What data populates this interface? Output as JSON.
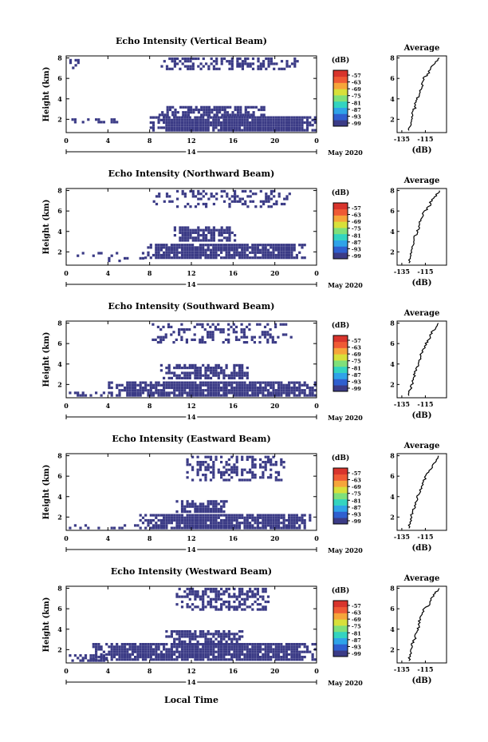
{
  "figure": {
    "bottom_xlabel": "Local Time",
    "day_label": "14",
    "month_label": "May 2020",
    "avg_title": "Average",
    "cbar_unit": "(dB)",
    "ylabel": "Height (km)",
    "avg_xlabel": "(dB)",
    "x_ticks": [
      "0",
      "4",
      "8",
      "12",
      "16",
      "20",
      "0"
    ],
    "y_ticks": [
      "2",
      "4",
      "6",
      "8"
    ],
    "cbar_ticks": [
      "-57",
      "-63",
      "-69",
      "-75",
      "-81",
      "-87",
      "-93",
      "-99"
    ],
    "colormap": [
      "#3b3b86",
      "#2f5fcf",
      "#2fa3e8",
      "#33d4c0",
      "#7fe07a",
      "#d8e03a",
      "#f6a53a",
      "#ef5a35",
      "#d8342c"
    ],
    "fill_color": "#3b3b86"
  },
  "chart_data": [
    {
      "type": "heatmap",
      "title": "Echo Intensity (Vertical Beam)",
      "xlim": [
        0,
        24
      ],
      "ylim": [
        0.7,
        8.2
      ],
      "vmin": -99,
      "vmax": -57,
      "echo_regions": [
        {
          "t": [
            8.8,
            22.2
          ],
          "h": [
            6.8,
            8.0
          ],
          "density": 0.5
        },
        {
          "t": [
            0.3,
            1.2
          ],
          "h": [
            6.9,
            7.9
          ],
          "density": 0.45
        },
        {
          "t": [
            8.6,
            19.0
          ],
          "h": [
            2.3,
            3.3
          ],
          "density": 0.7
        },
        {
          "t": [
            8.0,
            24.0
          ],
          "h": [
            0.8,
            2.2
          ],
          "density": 0.95
        },
        {
          "t": [
            0.0,
            5.0
          ],
          "h": [
            1.6,
            2.0
          ],
          "density": 0.35
        }
      ],
      "average": {
        "x": [
          -103,
          -107,
          -110,
          -113,
          -117,
          -118,
          -120,
          -121,
          -123,
          -124,
          -127,
          -126,
          -128,
          -129
        ],
        "y": [
          8.0,
          7.5,
          7.0,
          6.4,
          5.9,
          5.3,
          4.8,
          4.2,
          3.7,
          3.1,
          2.6,
          2.1,
          1.5,
          0.9
        ]
      }
    },
    {
      "type": "heatmap",
      "title": "Echo Intensity (Northward Beam)",
      "xlim": [
        0,
        24
      ],
      "ylim": [
        0.7,
        8.2
      ],
      "vmin": -99,
      "vmax": -57,
      "echo_regions": [
        {
          "t": [
            8.3,
            21.5
          ],
          "h": [
            6.3,
            8.0
          ],
          "density": 0.3
        },
        {
          "t": [
            10.3,
            16.2
          ],
          "h": [
            3.0,
            4.4
          ],
          "density": 0.75
        },
        {
          "t": [
            7.5,
            23.0
          ],
          "h": [
            1.3,
            2.6
          ],
          "density": 0.9
        },
        {
          "t": [
            0.5,
            7.5
          ],
          "h": [
            1.0,
            2.0
          ],
          "density": 0.15
        }
      ],
      "average": {
        "x": [
          -103,
          -106,
          -110,
          -112,
          -116,
          -118,
          -120,
          -121,
          -123,
          -125,
          -126,
          -127,
          -128,
          -129
        ],
        "y": [
          8.0,
          7.5,
          7.0,
          6.4,
          5.9,
          5.3,
          4.8,
          4.2,
          3.7,
          3.1,
          2.6,
          2.1,
          1.5,
          0.9
        ]
      }
    },
    {
      "type": "heatmap",
      "title": "Echo Intensity (Southward Beam)",
      "xlim": [
        0,
        24
      ],
      "ylim": [
        0.7,
        8.2
      ],
      "vmin": -99,
      "vmax": -57,
      "echo_regions": [
        {
          "t": [
            8.2,
            21.5
          ],
          "h": [
            6.0,
            8.0
          ],
          "density": 0.35
        },
        {
          "t": [
            9.0,
            17.5
          ],
          "h": [
            2.5,
            4.0
          ],
          "density": 0.75
        },
        {
          "t": [
            4.0,
            24.0
          ],
          "h": [
            0.8,
            2.3
          ],
          "density": 0.9
        },
        {
          "t": [
            0.0,
            4.0
          ],
          "h": [
            0.8,
            1.2
          ],
          "density": 0.5
        }
      ],
      "average": {
        "x": [
          -103,
          -107,
          -110,
          -112,
          -115,
          -117,
          -119,
          -120,
          -122,
          -124,
          -125,
          -126,
          -128,
          -129
        ],
        "y": [
          8.0,
          7.5,
          7.0,
          6.4,
          5.9,
          5.3,
          4.8,
          4.2,
          3.7,
          3.1,
          2.6,
          2.1,
          1.5,
          0.9
        ]
      }
    },
    {
      "type": "heatmap",
      "title": "Echo Intensity (Eastward Beam)",
      "xlim": [
        0,
        24
      ],
      "ylim": [
        0.7,
        8.2
      ],
      "vmin": -99,
      "vmax": -57,
      "echo_regions": [
        {
          "t": [
            11.5,
            21.0
          ],
          "h": [
            5.5,
            8.0
          ],
          "density": 0.45
        },
        {
          "t": [
            10.5,
            15.5
          ],
          "h": [
            2.4,
            3.5
          ],
          "density": 0.75
        },
        {
          "t": [
            7.0,
            23.5
          ],
          "h": [
            0.8,
            2.3
          ],
          "density": 0.9
        },
        {
          "t": [
            0.0,
            7.0
          ],
          "h": [
            0.8,
            1.3
          ],
          "density": 0.2
        }
      ],
      "average": {
        "x": [
          -103,
          -106,
          -109,
          -112,
          -115,
          -117,
          -119,
          -121,
          -122,
          -124,
          -125,
          -127,
          -128,
          -129
        ],
        "y": [
          8.0,
          7.5,
          7.0,
          6.4,
          5.9,
          5.3,
          4.8,
          4.2,
          3.7,
          3.1,
          2.6,
          2.1,
          1.5,
          0.9
        ]
      }
    },
    {
      "type": "heatmap",
      "title": "Echo Intensity (Westward Beam)",
      "xlim": [
        0,
        24
      ],
      "ylim": [
        0.7,
        8.2
      ],
      "vmin": -99,
      "vmax": -57,
      "echo_regions": [
        {
          "t": [
            10.5,
            19.5
          ],
          "h": [
            5.8,
            8.0
          ],
          "density": 0.5
        },
        {
          "t": [
            9.5,
            17.0
          ],
          "h": [
            2.4,
            3.8
          ],
          "density": 0.75
        },
        {
          "t": [
            2.5,
            24.0
          ],
          "h": [
            0.9,
            2.5
          ],
          "density": 0.9
        },
        {
          "t": [
            0.0,
            4.0
          ],
          "h": [
            0.8,
            1.5
          ],
          "density": 0.45
        }
      ],
      "average": {
        "x": [
          -103,
          -107,
          -110,
          -112,
          -116,
          -118,
          -120,
          -121,
          -123,
          -124,
          -126,
          -127,
          -128,
          -129
        ],
        "y": [
          8.0,
          7.5,
          7.0,
          6.4,
          5.9,
          5.3,
          4.8,
          4.2,
          3.7,
          3.1,
          2.6,
          2.1,
          1.5,
          0.9
        ]
      }
    }
  ]
}
